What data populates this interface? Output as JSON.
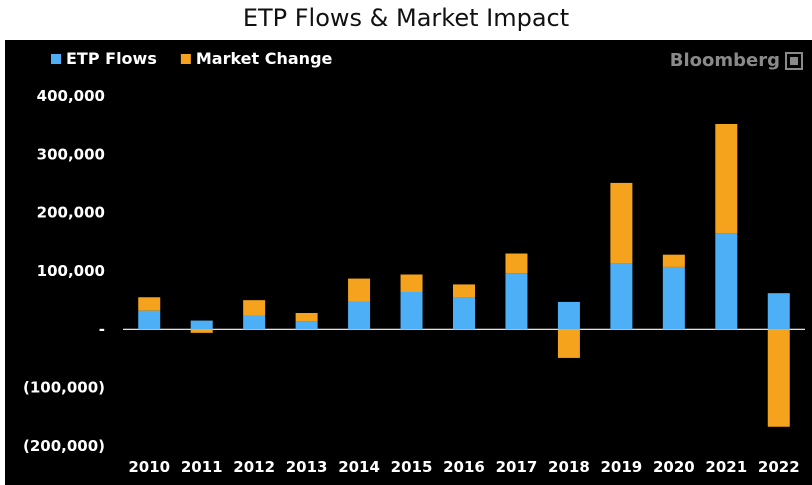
{
  "chart_data": {
    "type": "bar",
    "stacked": true,
    "title": "ETP Flows & Market Impact",
    "source": "Bloomberg",
    "categories": [
      "2010",
      "2011",
      "2012",
      "2013",
      "2014",
      "2015",
      "2016",
      "2017",
      "2018",
      "2019",
      "2020",
      "2021",
      "2022"
    ],
    "series": [
      {
        "name": "ETP Flows",
        "color": "#4db0f7",
        "values": [
          32000,
          15000,
          23000,
          13000,
          47000,
          64000,
          54000,
          96000,
          47000,
          113000,
          107000,
          165000,
          62000
        ]
      },
      {
        "name": "Market Change",
        "color": "#f5a31c",
        "values": [
          23000,
          -6000,
          27000,
          15000,
          40000,
          30000,
          23000,
          34000,
          -49000,
          138000,
          21000,
          187000,
          -167000
        ]
      }
    ],
    "y_ticks": [
      400000,
      300000,
      200000,
      100000,
      0,
      -100000,
      -200000
    ],
    "y_tick_labels": [
      "400,000",
      "300,000",
      "200,000",
      "100,000",
      "-",
      "(100,000)",
      "(200,000)"
    ],
    "ylim": [
      -200000,
      400000
    ],
    "legend_position": "top-left"
  }
}
